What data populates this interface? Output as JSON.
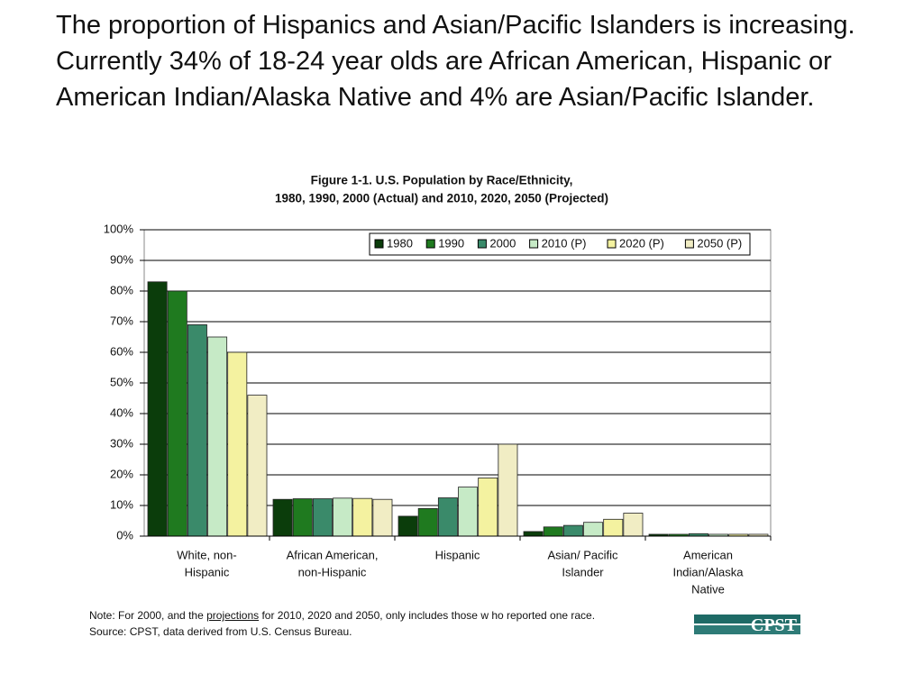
{
  "heading": "The proportion of Hispanics and Asian/Pacific Islanders is increasing. Currently 34% of 18-24 year olds are African American, Hispanic or American Indian/Alaska Native and 4% are Asian/Pacific Islander.",
  "chart_data": {
    "type": "bar",
    "title": "Figure 1-1. U.S. Population by Race/Ethnicity,",
    "subtitle": "1980, 1990, 2000 (Actual) and 2010, 2020, 2050 (Projected)",
    "categories": [
      [
        "White, non-",
        "Hispanic"
      ],
      [
        "African American,",
        "non-Hispanic"
      ],
      [
        "Hispanic"
      ],
      [
        "Asian/ Pacific",
        "Islander"
      ],
      [
        "American",
        "Indian/Alaska",
        "Native"
      ]
    ],
    "series": [
      {
        "name": "1980",
        "color": "#0b3d0b",
        "values": [
          83,
          12,
          6.5,
          1.5,
          0.6
        ]
      },
      {
        "name": "1990",
        "color": "#1f7a1f",
        "values": [
          80,
          12.2,
          9,
          3,
          0.6
        ]
      },
      {
        "name": "2000",
        "color": "#3a8a6a",
        "values": [
          69,
          12.2,
          12.5,
          3.5,
          0.8
        ]
      },
      {
        "name": "2010 (P)",
        "color": "#c6eac6",
        "values": [
          65,
          12.4,
          16,
          4.5,
          0.6
        ]
      },
      {
        "name": "2020 (P)",
        "color": "#f4f2a0",
        "values": [
          60,
          12.3,
          19,
          5.5,
          0.6
        ]
      },
      {
        "name": "2050 (P)",
        "color": "#f1edc4",
        "values": [
          46,
          12,
          30,
          7.5,
          0.6
        ]
      }
    ],
    "ylim": [
      0,
      100
    ],
    "yticks": [
      {
        "value": 0,
        "label": "0%"
      },
      {
        "value": 10,
        "label": "10%"
      },
      {
        "value": 20,
        "label": "20%"
      },
      {
        "value": 30,
        "label": "30%"
      },
      {
        "value": 40,
        "label": "40%"
      },
      {
        "value": 50,
        "label": "50%"
      },
      {
        "value": 60,
        "label": "60%"
      },
      {
        "value": 70,
        "label": "70%"
      },
      {
        "value": 80,
        "label": "80%"
      },
      {
        "value": 90,
        "label": "90%"
      },
      {
        "value": 100,
        "label": "100%"
      }
    ],
    "grid": true,
    "legend": "top-right"
  },
  "note": {
    "before": "Note: For 2000, and the",
    "link": "projections",
    "after": "for 2010, 2020 and 2050, only includes those w ho reported one race."
  },
  "source": "Source: CPST, data derived from U.S. Census Bureau.",
  "logo": "CPST"
}
